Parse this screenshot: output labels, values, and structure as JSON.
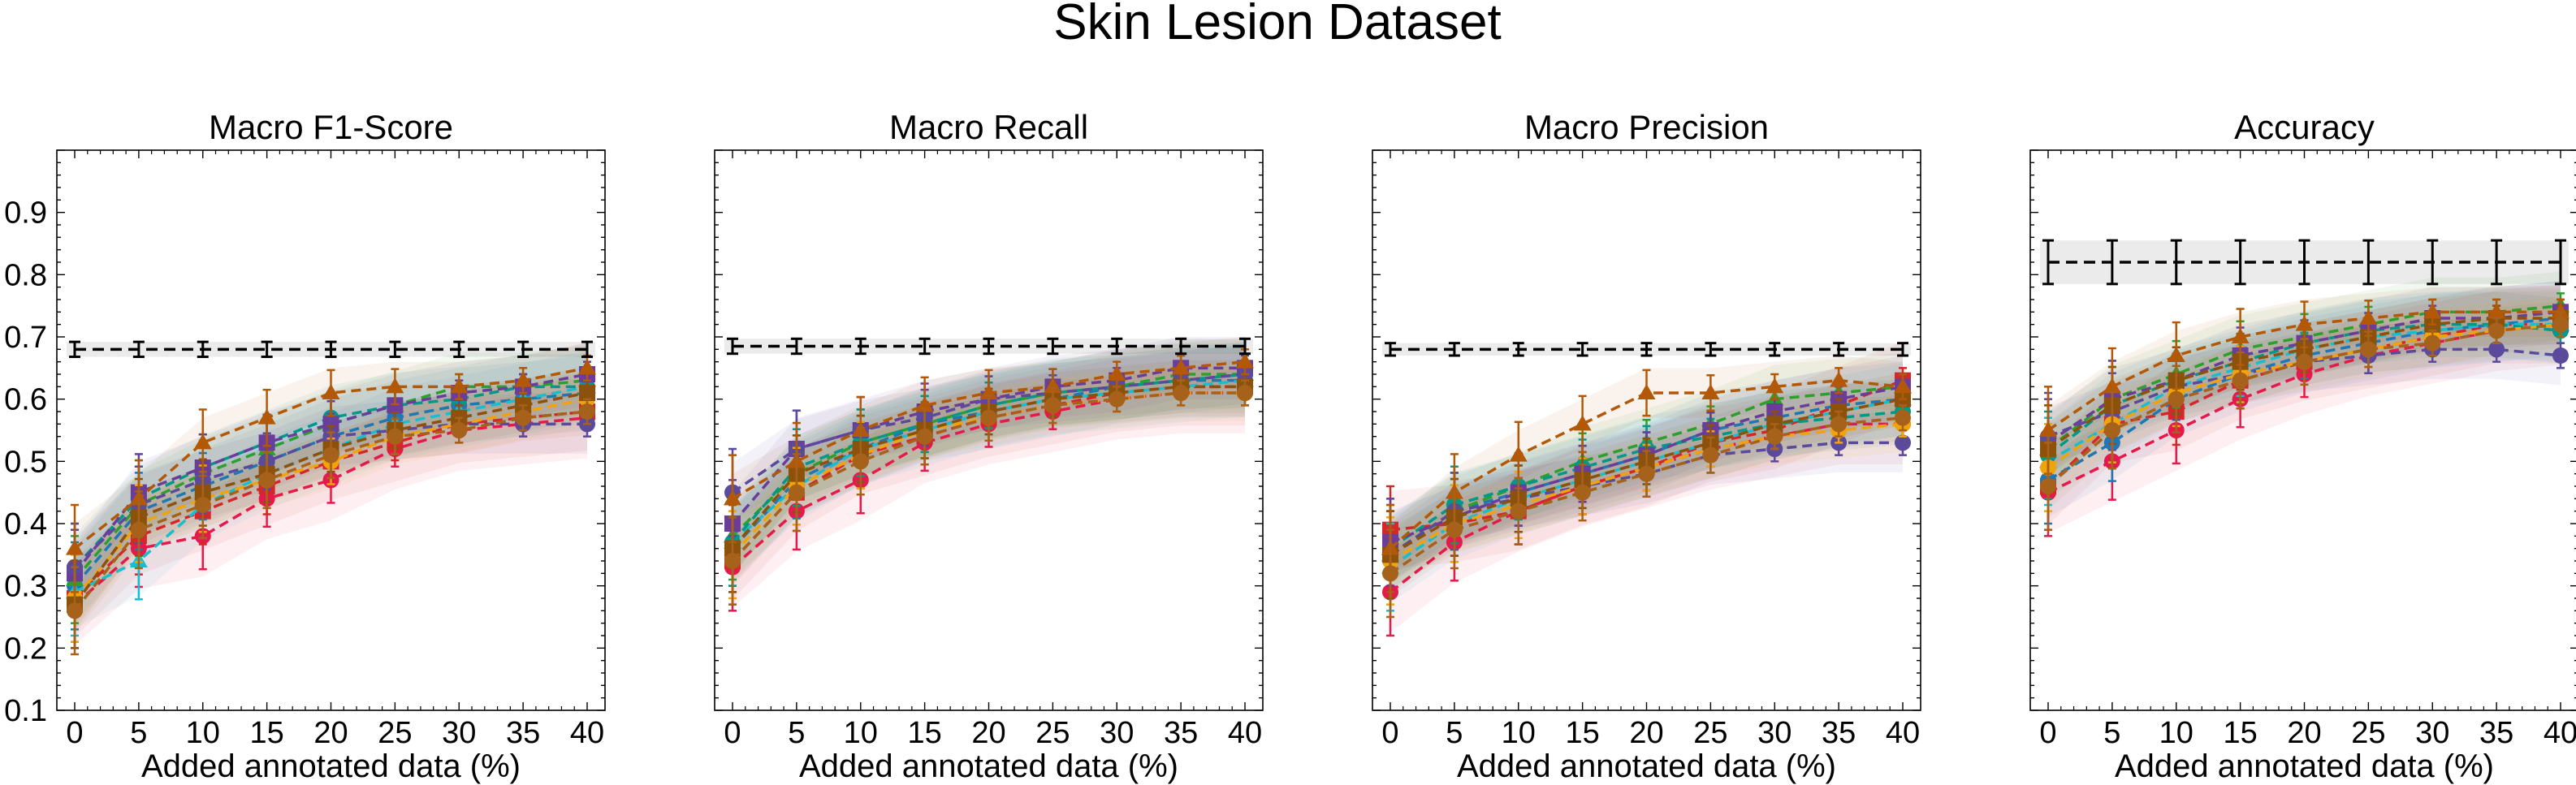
{
  "figure": {
    "suptitle": "Skin Lesion Dataset"
  },
  "chart_data": [
    {
      "type": "line",
      "title": "Macro F1-Score",
      "xlabel": "Added annotated data (%)",
      "ylabel": "",
      "x": [
        0,
        5,
        10,
        15,
        20,
        25,
        30,
        35,
        40
      ],
      "ylim": [
        0.1,
        1.0
      ],
      "yticks": [
        "0.1",
        "0.2",
        "0.3",
        "0.4",
        "0.5",
        "0.6",
        "0.7",
        "0.8",
        "0.9"
      ],
      "show_yticklabels": true,
      "baseline": {
        "values": [
          0.68,
          0.68,
          0.68,
          0.68,
          0.68,
          0.68,
          0.68,
          0.68,
          0.68
        ],
        "err": 0.012
      },
      "series": [
        {
          "color": "#e6194b",
          "marker": "circle",
          "values": [
            0.27,
            0.36,
            0.38,
            0.44,
            0.47,
            0.52,
            0.55,
            0.56,
            0.57
          ]
        },
        {
          "color": "#d62728",
          "marker": "square",
          "values": [
            0.28,
            0.38,
            0.42,
            0.46,
            0.5,
            0.53,
            0.56,
            0.57,
            0.58
          ]
        },
        {
          "color": "#1f77b4",
          "marker": "circle",
          "values": [
            0.3,
            0.42,
            0.46,
            0.5,
            0.54,
            0.57,
            0.59,
            0.6,
            0.61
          ]
        },
        {
          "color": "#17becf",
          "marker": "triangle",
          "values": [
            0.29,
            0.34,
            0.43,
            0.48,
            0.52,
            0.56,
            0.58,
            0.6,
            0.62
          ]
        },
        {
          "color": "#2ca02c",
          "marker": "triangle",
          "values": [
            0.31,
            0.43,
            0.48,
            0.52,
            0.56,
            0.59,
            0.62,
            0.62,
            0.63
          ]
        },
        {
          "color": "#009988",
          "marker": "circle",
          "values": [
            0.33,
            0.44,
            0.49,
            0.53,
            0.57,
            0.59,
            0.6,
            0.62,
            0.62
          ]
        },
        {
          "color": "#6a3d9a",
          "marker": "square",
          "values": [
            0.32,
            0.45,
            0.49,
            0.53,
            0.56,
            0.59,
            0.61,
            0.62,
            0.64
          ]
        },
        {
          "color": "#5b4a9b",
          "marker": "circle",
          "values": [
            0.33,
            0.43,
            0.47,
            0.5,
            0.54,
            0.55,
            0.56,
            0.56,
            0.56
          ]
        },
        {
          "color": "#f0a30a",
          "marker": "circle",
          "values": [
            0.28,
            0.4,
            0.44,
            0.47,
            0.5,
            0.54,
            0.56,
            0.58,
            0.6
          ]
        },
        {
          "color": "#8c510a",
          "marker": "square",
          "values": [
            0.27,
            0.41,
            0.45,
            0.48,
            0.52,
            0.55,
            0.57,
            0.59,
            0.61
          ]
        },
        {
          "color": "#b35806",
          "marker": "triangle",
          "values": [
            0.36,
            0.44,
            0.53,
            0.57,
            0.61,
            0.62,
            0.62,
            0.63,
            0.65
          ]
        },
        {
          "color": "#a6611a",
          "marker": "circle",
          "values": [
            0.26,
            0.39,
            0.43,
            0.47,
            0.51,
            0.54,
            0.55,
            0.57,
            0.58
          ]
        }
      ]
    },
    {
      "type": "line",
      "title": "Macro Recall",
      "xlabel": "Added annotated data (%)",
      "ylabel": "",
      "x": [
        0,
        5,
        10,
        15,
        20,
        25,
        30,
        35,
        40
      ],
      "ylim": [
        0.1,
        1.0
      ],
      "yticks": [
        "0.1",
        "0.2",
        "0.3",
        "0.4",
        "0.5",
        "0.6",
        "0.7",
        "0.8",
        "0.9"
      ],
      "show_yticklabels": false,
      "baseline": {
        "values": [
          0.685,
          0.685,
          0.685,
          0.685,
          0.685,
          0.685,
          0.685,
          0.685,
          0.685
        ],
        "err": 0.012
      },
      "series": [
        {
          "color": "#e6194b",
          "marker": "circle",
          "values": [
            0.33,
            0.42,
            0.47,
            0.53,
            0.56,
            0.58,
            0.6,
            0.61,
            0.61
          ]
        },
        {
          "color": "#d62728",
          "marker": "square",
          "values": [
            0.34,
            0.45,
            0.51,
            0.54,
            0.57,
            0.59,
            0.61,
            0.62,
            0.62
          ]
        },
        {
          "color": "#1f77b4",
          "marker": "circle",
          "values": [
            0.36,
            0.47,
            0.52,
            0.56,
            0.58,
            0.6,
            0.62,
            0.63,
            0.63
          ]
        },
        {
          "color": "#17becf",
          "marker": "triangle",
          "values": [
            0.37,
            0.46,
            0.52,
            0.55,
            0.58,
            0.6,
            0.61,
            0.62,
            0.63
          ]
        },
        {
          "color": "#2ca02c",
          "marker": "triangle",
          "values": [
            0.38,
            0.48,
            0.53,
            0.56,
            0.59,
            0.61,
            0.62,
            0.64,
            0.64
          ]
        },
        {
          "color": "#009988",
          "marker": "circle",
          "values": [
            0.37,
            0.49,
            0.53,
            0.56,
            0.59,
            0.61,
            0.62,
            0.63,
            0.64
          ]
        },
        {
          "color": "#6a3d9a",
          "marker": "square",
          "values": [
            0.4,
            0.52,
            0.55,
            0.58,
            0.6,
            0.62,
            0.63,
            0.65,
            0.65
          ]
        },
        {
          "color": "#5b4a9b",
          "marker": "circle",
          "values": [
            0.45,
            0.52,
            0.55,
            0.57,
            0.6,
            0.61,
            0.62,
            0.63,
            0.64
          ]
        },
        {
          "color": "#f0a30a",
          "marker": "circle",
          "values": [
            0.35,
            0.46,
            0.51,
            0.55,
            0.57,
            0.59,
            0.6,
            0.61,
            0.61
          ]
        },
        {
          "color": "#8c510a",
          "marker": "square",
          "values": [
            0.36,
            0.48,
            0.52,
            0.55,
            0.58,
            0.6,
            0.61,
            0.62,
            0.62
          ]
        },
        {
          "color": "#b35806",
          "marker": "triangle",
          "values": [
            0.44,
            0.5,
            0.55,
            0.59,
            0.61,
            0.62,
            0.64,
            0.65,
            0.66
          ]
        },
        {
          "color": "#a6611a",
          "marker": "circle",
          "values": [
            0.34,
            0.45,
            0.5,
            0.54,
            0.57,
            0.59,
            0.6,
            0.61,
            0.61
          ]
        }
      ]
    },
    {
      "type": "line",
      "title": "Macro Precision",
      "xlabel": "Added annotated data (%)",
      "ylabel": "",
      "x": [
        0,
        5,
        10,
        15,
        20,
        25,
        30,
        35,
        40
      ],
      "ylim": [
        0.1,
        1.0
      ],
      "yticks": [
        "0.1",
        "0.2",
        "0.3",
        "0.4",
        "0.5",
        "0.6",
        "0.7",
        "0.8",
        "0.9"
      ],
      "show_yticklabels": false,
      "baseline": {
        "values": [
          0.68,
          0.68,
          0.68,
          0.68,
          0.68,
          0.68,
          0.68,
          0.68,
          0.68
        ],
        "err": 0.01
      },
      "series": [
        {
          "color": "#e6194b",
          "marker": "circle",
          "values": [
            0.29,
            0.37,
            0.42,
            0.46,
            0.49,
            0.52,
            0.54,
            0.56,
            0.56
          ]
        },
        {
          "color": "#d62728",
          "marker": "square",
          "values": [
            0.39,
            0.4,
            0.42,
            0.46,
            0.49,
            0.53,
            0.55,
            0.59,
            0.63
          ]
        },
        {
          "color": "#1f77b4",
          "marker": "circle",
          "values": [
            0.35,
            0.42,
            0.45,
            0.48,
            0.51,
            0.55,
            0.57,
            0.59,
            0.6
          ]
        },
        {
          "color": "#17becf",
          "marker": "triangle",
          "values": [
            0.33,
            0.4,
            0.44,
            0.47,
            0.5,
            0.53,
            0.56,
            0.58,
            0.6
          ]
        },
        {
          "color": "#2ca02c",
          "marker": "triangle",
          "values": [
            0.35,
            0.42,
            0.46,
            0.5,
            0.53,
            0.56,
            0.6,
            0.61,
            0.62
          ]
        },
        {
          "color": "#009988",
          "marker": "circle",
          "values": [
            0.36,
            0.43,
            0.46,
            0.49,
            0.52,
            0.54,
            0.56,
            0.57,
            0.58
          ]
        },
        {
          "color": "#6a3d9a",
          "marker": "square",
          "values": [
            0.37,
            0.41,
            0.45,
            0.48,
            0.51,
            0.55,
            0.58,
            0.6,
            0.62
          ]
        },
        {
          "color": "#5b4a9b",
          "marker": "circle",
          "values": [
            0.35,
            0.42,
            0.44,
            0.46,
            0.48,
            0.51,
            0.52,
            0.53,
            0.53
          ]
        },
        {
          "color": "#f0a30a",
          "marker": "circle",
          "values": [
            0.34,
            0.4,
            0.43,
            0.46,
            0.49,
            0.52,
            0.54,
            0.55,
            0.56
          ]
        },
        {
          "color": "#8c510a",
          "marker": "square",
          "values": [
            0.35,
            0.41,
            0.44,
            0.47,
            0.5,
            0.53,
            0.56,
            0.58,
            0.6
          ]
        },
        {
          "color": "#b35806",
          "marker": "triangle",
          "values": [
            0.36,
            0.45,
            0.51,
            0.56,
            0.61,
            0.61,
            0.62,
            0.63,
            0.62
          ]
        },
        {
          "color": "#a6611a",
          "marker": "circle",
          "values": [
            0.32,
            0.39,
            0.42,
            0.45,
            0.48,
            0.51,
            0.54,
            0.56,
            0.57
          ]
        }
      ]
    },
    {
      "type": "line",
      "title": "Accuracy",
      "xlabel": "Added annotated data (%)",
      "ylabel": "",
      "x": [
        0,
        5,
        10,
        15,
        20,
        25,
        30,
        35,
        40
      ],
      "ylim": [
        0.1,
        1.0
      ],
      "yticks": [
        "0.1",
        "0.2",
        "0.3",
        "0.4",
        "0.5",
        "0.6",
        "0.7",
        "0.8",
        "0.9"
      ],
      "show_yticklabels": false,
      "baseline": {
        "values": [
          0.82,
          0.82,
          0.82,
          0.82,
          0.82,
          0.82,
          0.82,
          0.82,
          0.82
        ],
        "err": 0.035
      },
      "series": [
        {
          "color": "#e6194b",
          "marker": "circle",
          "values": [
            0.45,
            0.5,
            0.55,
            0.6,
            0.64,
            0.67,
            0.69,
            0.71,
            0.72
          ]
        },
        {
          "color": "#d62728",
          "marker": "square",
          "values": [
            0.46,
            0.56,
            0.58,
            0.63,
            0.66,
            0.68,
            0.7,
            0.72,
            0.72
          ]
        },
        {
          "color": "#1f77b4",
          "marker": "circle",
          "values": [
            0.47,
            0.53,
            0.6,
            0.64,
            0.67,
            0.69,
            0.71,
            0.72,
            0.73
          ]
        },
        {
          "color": "#17becf",
          "marker": "triangle",
          "values": [
            0.5,
            0.56,
            0.62,
            0.65,
            0.68,
            0.7,
            0.71,
            0.72,
            0.72
          ]
        },
        {
          "color": "#2ca02c",
          "marker": "triangle",
          "values": [
            0.52,
            0.6,
            0.64,
            0.68,
            0.7,
            0.72,
            0.74,
            0.74,
            0.75
          ]
        },
        {
          "color": "#009988",
          "marker": "circle",
          "values": [
            0.51,
            0.59,
            0.63,
            0.66,
            0.69,
            0.71,
            0.72,
            0.72,
            0.71
          ]
        },
        {
          "color": "#6a3d9a",
          "marker": "square",
          "values": [
            0.53,
            0.6,
            0.63,
            0.67,
            0.69,
            0.71,
            0.73,
            0.73,
            0.74
          ]
        },
        {
          "color": "#5b4a9b",
          "marker": "circle",
          "values": [
            0.54,
            0.58,
            0.62,
            0.64,
            0.66,
            0.67,
            0.68,
            0.68,
            0.67
          ]
        },
        {
          "color": "#f0a30a",
          "marker": "circle",
          "values": [
            0.49,
            0.56,
            0.61,
            0.64,
            0.66,
            0.68,
            0.7,
            0.71,
            0.72
          ]
        },
        {
          "color": "#8c510a",
          "marker": "square",
          "values": [
            0.52,
            0.59,
            0.63,
            0.66,
            0.68,
            0.7,
            0.72,
            0.73,
            0.73
          ]
        },
        {
          "color": "#b35806",
          "marker": "triangle",
          "values": [
            0.55,
            0.62,
            0.67,
            0.7,
            0.72,
            0.73,
            0.74,
            0.74,
            0.74
          ]
        },
        {
          "color": "#a6611a",
          "marker": "circle",
          "values": [
            0.46,
            0.55,
            0.6,
            0.63,
            0.66,
            0.68,
            0.69,
            0.71,
            0.72
          ]
        }
      ]
    }
  ]
}
